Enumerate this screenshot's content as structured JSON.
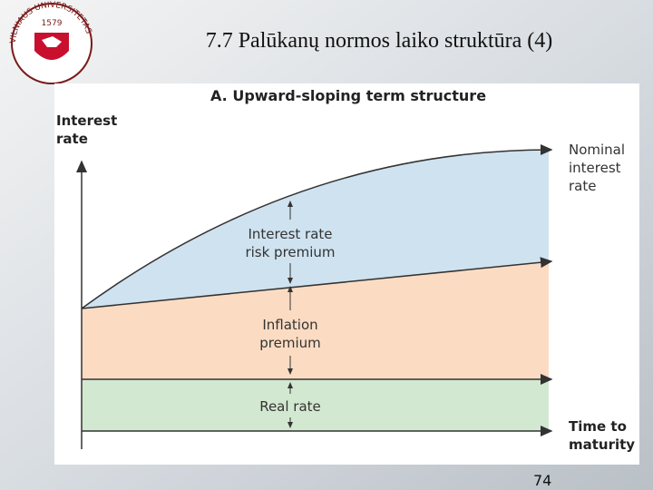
{
  "header": {
    "title": "7.7 Palūkanų normos laiko struktūra  (4)",
    "logo": {
      "name": "VILNIAUS UNIVERSITETAS",
      "year": "1579"
    }
  },
  "diagram": {
    "title": "A. Upward-sloping term structure",
    "y_axis_label": [
      "Interest",
      "rate"
    ],
    "x_axis_label": [
      "Time to",
      "maturity"
    ],
    "curve_label": [
      "Nominal",
      "interest",
      "rate"
    ],
    "bands": [
      {
        "label": [
          "Interest rate",
          "risk premium"
        ]
      },
      {
        "label": [
          "Inflation",
          "premium"
        ]
      },
      {
        "label": [
          "Real rate"
        ]
      }
    ]
  },
  "footer": {
    "page_number": "74"
  }
}
